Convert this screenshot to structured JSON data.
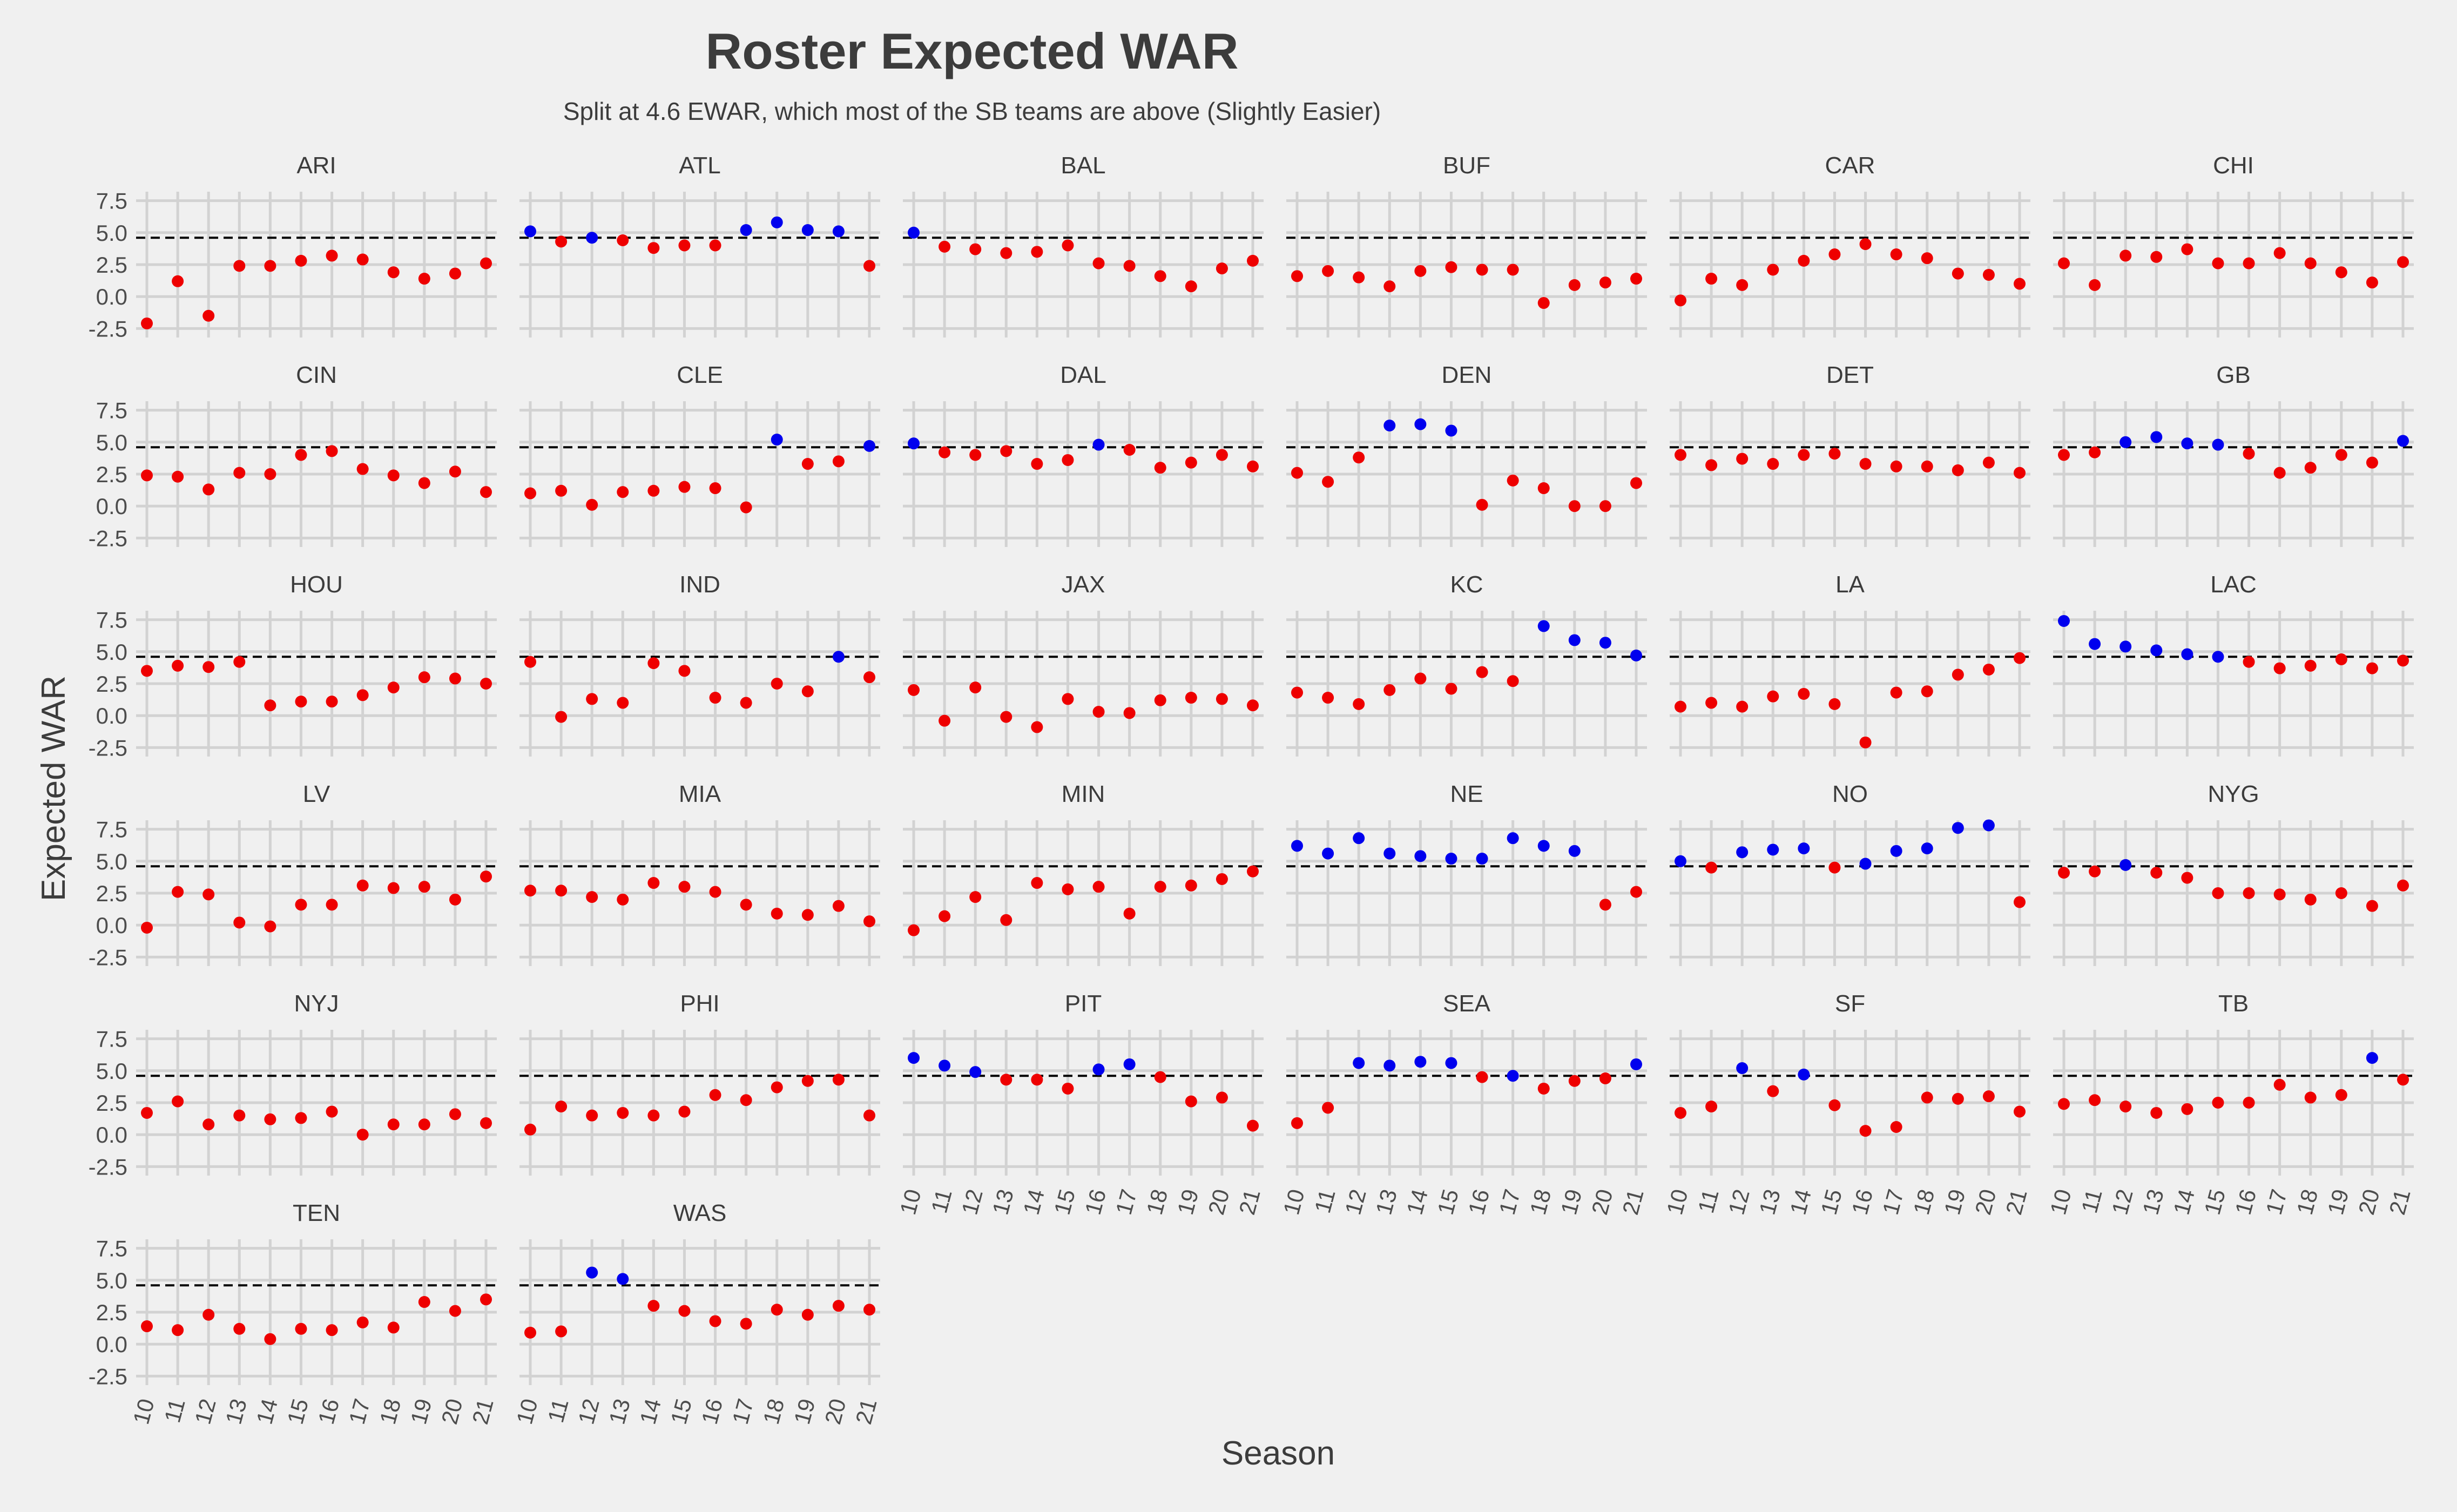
{
  "chart_data": {
    "type": "scatter",
    "title": "Roster Expected WAR",
    "subtitle": "Split at 4.6 EWAR, which most of the SB teams are above (Slightly Easier)",
    "xlabel": "Season",
    "ylabel": "Expected WAR",
    "threshold": 4.6,
    "x": [
      10,
      11,
      12,
      13,
      14,
      15,
      16,
      17,
      18,
      19,
      20,
      21
    ],
    "x_tick_labels": [
      "10",
      "11",
      "12",
      "13",
      "14",
      "15",
      "16",
      "17",
      "18",
      "19",
      "20",
      "21"
    ],
    "y_ticks": [
      -2.5,
      0.0,
      2.5,
      5.0,
      7.5
    ],
    "y_tick_labels": [
      "-2.5",
      "0.0",
      "2.5",
      "5.0",
      "7.5"
    ],
    "ylim": [
      -3.2,
      8.2
    ],
    "grid": true,
    "legend": "none",
    "colors": {
      "above": "#0000ee",
      "below": "#ee0000",
      "threshold_line": "#000000",
      "background": "#f0f0f0",
      "grid": "#d2d2d2"
    },
    "panels": [
      {
        "team": "ARI",
        "values": [
          -2.1,
          1.2,
          -1.5,
          2.4,
          2.4,
          2.8,
          3.2,
          2.9,
          1.9,
          1.4,
          1.8,
          2.6
        ]
      },
      {
        "team": "ATL",
        "values": [
          5.1,
          4.3,
          4.6,
          4.4,
          3.8,
          4.0,
          4.0,
          5.2,
          5.8,
          5.2,
          5.1,
          2.4
        ]
      },
      {
        "team": "BAL",
        "values": [
          5.0,
          3.9,
          3.7,
          3.4,
          3.5,
          4.0,
          2.6,
          2.4,
          1.6,
          0.8,
          2.2,
          2.8
        ]
      },
      {
        "team": "BUF",
        "values": [
          1.6,
          2.0,
          1.5,
          0.8,
          2.0,
          2.3,
          2.1,
          2.1,
          -0.5,
          0.9,
          1.1,
          1.4
        ]
      },
      {
        "team": "CAR",
        "values": [
          -0.3,
          1.4,
          0.9,
          2.1,
          2.8,
          3.3,
          4.1,
          3.3,
          3.0,
          1.8,
          1.7,
          1.0
        ]
      },
      {
        "team": "CHI",
        "values": [
          2.6,
          0.9,
          3.2,
          3.1,
          3.7,
          2.6,
          2.6,
          3.4,
          2.6,
          1.9,
          1.1,
          2.7
        ]
      },
      {
        "team": "CIN",
        "values": [
          2.4,
          2.3,
          1.3,
          2.6,
          2.5,
          4.0,
          4.3,
          2.9,
          2.4,
          1.8,
          2.7,
          1.1
        ]
      },
      {
        "team": "CLE",
        "values": [
          1.0,
          1.2,
          0.1,
          1.1,
          1.2,
          1.5,
          1.4,
          -0.1,
          5.2,
          3.3,
          3.5,
          4.7
        ]
      },
      {
        "team": "DAL",
        "values": [
          4.9,
          4.2,
          4.0,
          4.3,
          3.3,
          3.6,
          4.8,
          4.4,
          3.0,
          3.4,
          4.0,
          3.1
        ]
      },
      {
        "team": "DEN",
        "values": [
          2.6,
          1.9,
          3.8,
          6.3,
          6.4,
          5.9,
          0.1,
          2.0,
          1.4,
          0.0,
          0.0,
          1.8
        ]
      },
      {
        "team": "DET",
        "values": [
          4.0,
          3.2,
          3.7,
          3.3,
          4.0,
          4.1,
          3.3,
          3.1,
          3.1,
          2.8,
          3.4,
          2.6
        ]
      },
      {
        "team": "GB",
        "values": [
          4.0,
          4.2,
          5.0,
          5.4,
          4.9,
          4.8,
          4.1,
          2.6,
          3.0,
          4.0,
          3.4,
          5.1
        ]
      },
      {
        "team": "HOU",
        "values": [
          3.5,
          3.9,
          3.8,
          4.2,
          0.8,
          1.1,
          1.1,
          1.6,
          2.2,
          3.0,
          2.9,
          2.5
        ]
      },
      {
        "team": "IND",
        "values": [
          4.2,
          -0.1,
          1.3,
          1.0,
          4.1,
          3.5,
          1.4,
          1.0,
          2.5,
          1.9,
          4.6,
          3.0
        ]
      },
      {
        "team": "JAX",
        "values": [
          2.0,
          -0.4,
          2.2,
          -0.1,
          -0.9,
          1.3,
          0.3,
          0.2,
          1.2,
          1.4,
          1.3,
          0.8
        ]
      },
      {
        "team": "KC",
        "values": [
          1.8,
          1.4,
          0.9,
          2.0,
          2.9,
          2.1,
          3.4,
          2.7,
          7.0,
          5.9,
          5.7,
          4.7
        ]
      },
      {
        "team": "LA",
        "values": [
          0.7,
          1.0,
          0.7,
          1.5,
          1.7,
          0.9,
          -2.1,
          1.8,
          1.9,
          3.2,
          3.6,
          4.5
        ]
      },
      {
        "team": "LAC",
        "values": [
          7.4,
          5.6,
          5.4,
          5.1,
          4.8,
          4.6,
          4.2,
          3.7,
          3.9,
          4.4,
          3.7,
          4.3
        ]
      },
      {
        "team": "LV",
        "values": [
          -0.2,
          2.6,
          2.4,
          0.2,
          -0.1,
          1.6,
          1.6,
          3.1,
          2.9,
          3.0,
          2.0,
          3.8
        ]
      },
      {
        "team": "MIA",
        "values": [
          2.7,
          2.7,
          2.2,
          2.0,
          3.3,
          3.0,
          2.6,
          1.6,
          0.9,
          0.8,
          1.5,
          0.3
        ]
      },
      {
        "team": "MIN",
        "values": [
          -0.4,
          0.7,
          2.2,
          0.4,
          3.3,
          2.8,
          3.0,
          0.9,
          3.0,
          3.1,
          3.6,
          4.2
        ]
      },
      {
        "team": "NE",
        "values": [
          6.2,
          5.6,
          6.8,
          5.6,
          5.4,
          5.2,
          5.2,
          6.8,
          6.2,
          5.8,
          1.6,
          2.6
        ]
      },
      {
        "team": "NO",
        "values": [
          5.0,
          4.5,
          5.7,
          5.9,
          6.0,
          4.5,
          4.8,
          5.8,
          6.0,
          7.6,
          7.8,
          1.8
        ]
      },
      {
        "team": "NYG",
        "values": [
          4.1,
          4.2,
          4.7,
          4.1,
          3.7,
          2.5,
          2.5,
          2.4,
          2.0,
          2.5,
          1.5,
          3.1
        ]
      },
      {
        "team": "NYJ",
        "values": [
          1.7,
          2.6,
          0.8,
          1.5,
          1.2,
          1.3,
          1.8,
          0.0,
          0.8,
          0.8,
          1.6,
          0.9
        ]
      },
      {
        "team": "PHI",
        "values": [
          0.4,
          2.2,
          1.5,
          1.7,
          1.5,
          1.8,
          3.1,
          2.7,
          3.7,
          4.2,
          4.3,
          1.5
        ]
      },
      {
        "team": "PIT",
        "values": [
          6.0,
          5.4,
          4.9,
          4.3,
          4.3,
          3.6,
          5.1,
          5.5,
          4.5,
          2.6,
          2.9,
          0.7
        ]
      },
      {
        "team": "SEA",
        "values": [
          0.9,
          2.1,
          5.6,
          5.4,
          5.7,
          5.6,
          4.5,
          4.6,
          3.6,
          4.2,
          4.4,
          5.5
        ]
      },
      {
        "team": "SF",
        "values": [
          1.7,
          2.2,
          5.2,
          3.4,
          4.7,
          2.3,
          0.3,
          0.6,
          2.9,
          2.8,
          3.0,
          1.8
        ]
      },
      {
        "team": "TB",
        "values": [
          2.4,
          2.7,
          2.2,
          1.7,
          2.0,
          2.5,
          2.5,
          3.9,
          2.9,
          3.1,
          6.0,
          4.3
        ]
      },
      {
        "team": "TEN",
        "values": [
          1.4,
          1.1,
          2.3,
          1.2,
          0.4,
          1.2,
          1.1,
          1.7,
          1.3,
          3.3,
          2.6,
          3.5
        ]
      },
      {
        "team": "WAS",
        "values": [
          0.9,
          1.0,
          5.6,
          5.1,
          3.0,
          2.6,
          1.8,
          1.6,
          2.7,
          2.3,
          3.0,
          2.7
        ]
      }
    ]
  }
}
